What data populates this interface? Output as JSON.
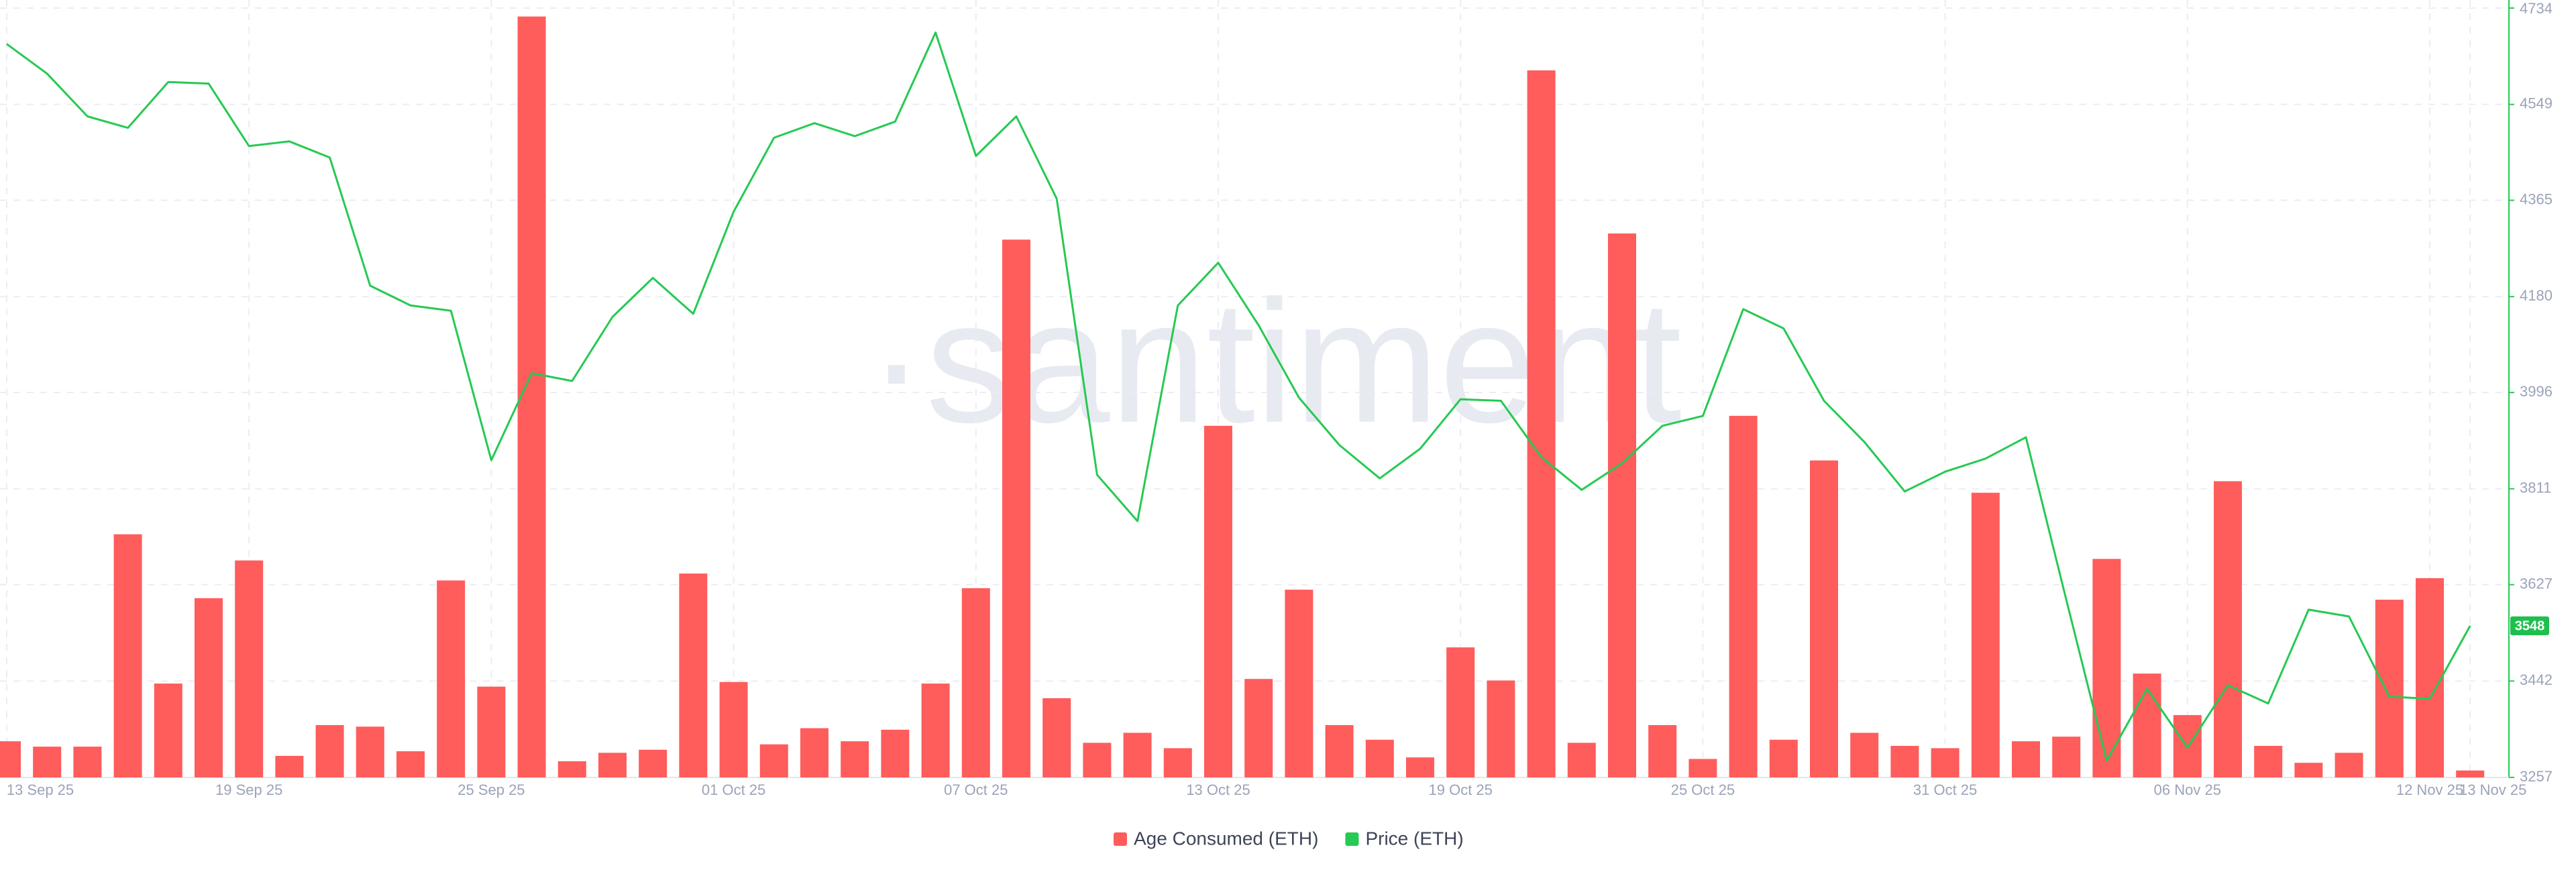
{
  "chart_data": {
    "type": "combo",
    "watermark": "·santiment",
    "categories": [
      "13 Sep 25",
      null,
      null,
      null,
      null,
      null,
      "19 Sep 25",
      null,
      null,
      null,
      null,
      null,
      "25 Sep 25",
      null,
      null,
      null,
      null,
      null,
      "01 Oct 25",
      null,
      null,
      null,
      null,
      null,
      "07 Oct 25",
      null,
      null,
      null,
      null,
      null,
      "13 Oct 25",
      null,
      null,
      null,
      null,
      null,
      "19 Oct 25",
      null,
      null,
      null,
      null,
      null,
      "25 Oct 25",
      null,
      null,
      null,
      null,
      null,
      "31 Oct 25",
      null,
      null,
      null,
      null,
      null,
      "06 Nov 25",
      null,
      null,
      null,
      null,
      null,
      "12 Nov 25",
      "13 Nov 25"
    ],
    "series": [
      {
        "name": "Age Consumed (ETH)",
        "type": "bar",
        "axis": "y",
        "color": "#ff5c5c",
        "values": [
          4.7,
          4,
          4,
          31.6,
          12.2,
          23.3,
          28.2,
          2.8,
          6.8,
          6.6,
          3.4,
          25.6,
          11.8,
          98.9,
          2.1,
          3.2,
          3.6,
          26.5,
          12.4,
          4.3,
          6.4,
          4.7,
          6.2,
          12.2,
          24.6,
          69.9,
          10.3,
          4.5,
          5.8,
          3.8,
          45.7,
          12.8,
          24.4,
          6.8,
          4.9,
          2.6,
          16.9,
          12.6,
          91.9,
          4.5,
          70.7,
          6.8,
          2.4,
          47.0,
          4.9,
          41.2,
          5.8,
          4.1,
          3.8,
          37.0,
          4.7,
          5.3,
          28.4,
          13.5,
          8.1,
          38.5,
          4.1,
          1.9,
          3.2,
          23.1,
          25.9,
          0.9
        ]
      },
      {
        "name": "Price (ETH)",
        "type": "line",
        "axis": "y2",
        "color": "#26c953",
        "values": [
          4665,
          4608,
          4526,
          4504,
          4592,
          4589,
          4469,
          4478,
          4447,
          4201,
          4163,
          4153,
          3866,
          4033,
          4018,
          4141,
          4216,
          4147,
          4343,
          4485,
          4513,
          4488,
          4516,
          4687,
          4450,
          4526,
          4368,
          3838,
          3749,
          4163,
          4245,
          4125,
          3986,
          3895,
          3831,
          3888,
          3983,
          3980,
          3872,
          3809,
          3860,
          3932,
          3951,
          4156,
          4119,
          3980,
          3901,
          3806,
          3844,
          3869,
          3910,
          3598,
          3289,
          3427,
          3314,
          3434,
          3399,
          3579,
          3566,
          3412,
          3408,
          3548
        ]
      }
    ],
    "ylim": [
      0,
      100
    ],
    "y2lim": [
      3257,
      4734
    ],
    "y2ticks": [
      3257,
      3442,
      3627,
      3811,
      3996,
      4180,
      4365,
      4549,
      4734
    ],
    "grid": true,
    "legend": "bottom"
  }
}
